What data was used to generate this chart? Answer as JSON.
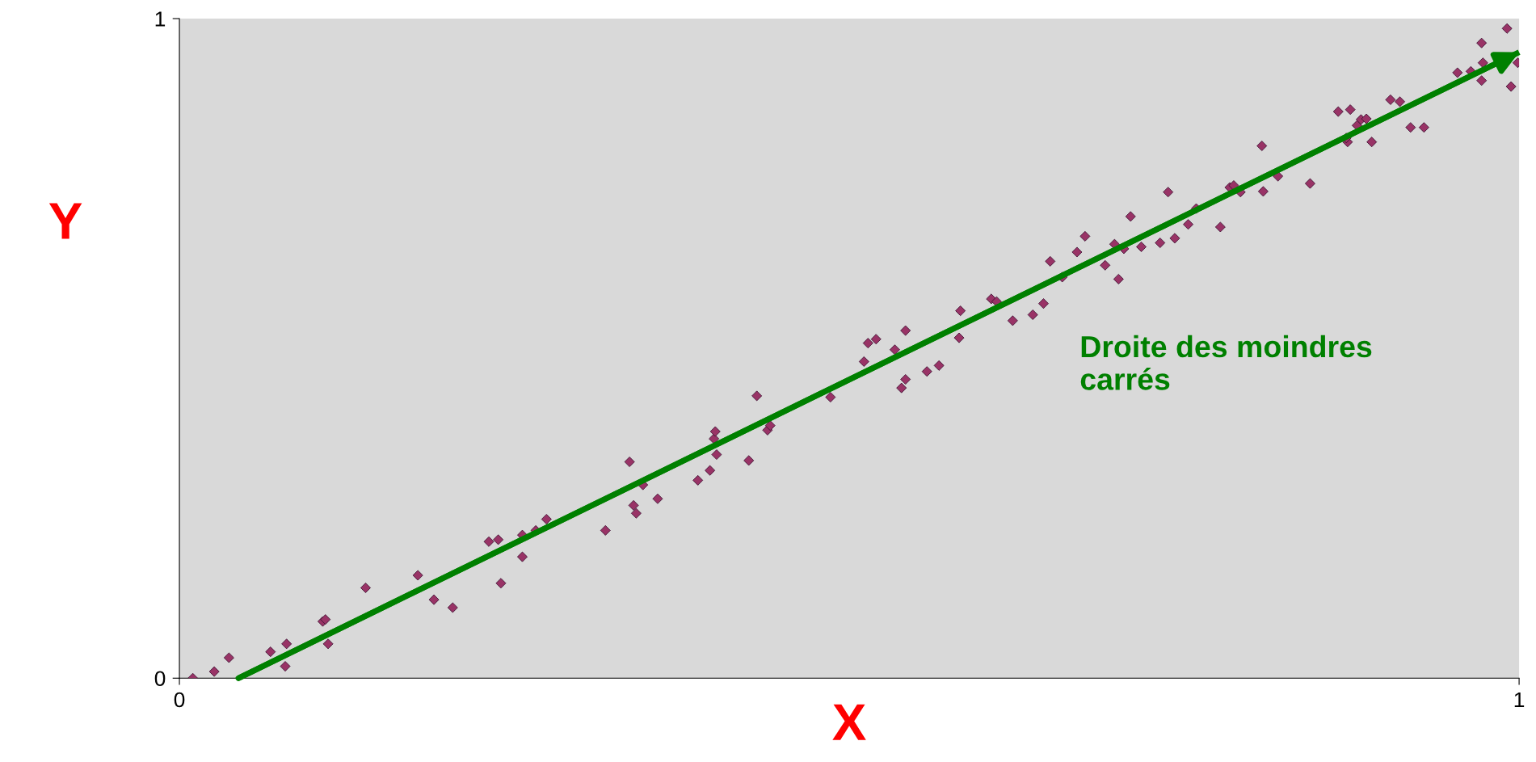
{
  "chart_data": {
    "type": "scatter",
    "xlabel": "X",
    "ylabel": "Y",
    "xlim": [
      0,
      1
    ],
    "ylim": [
      0,
      1
    ],
    "xticks": [
      0,
      1
    ],
    "yticks": [
      0,
      1
    ],
    "grid": false,
    "legend": false,
    "series": [
      {
        "marker": "diamond",
        "color": "#993366",
        "x": [
          0.01,
          0.026,
          0.037,
          0.068,
          0.08,
          0.079,
          0.107,
          0.109,
          0.111,
          0.139,
          0.178,
          0.19,
          0.204,
          0.231,
          0.238,
          0.24,
          0.256,
          0.256,
          0.266,
          0.274,
          0.318,
          0.336,
          0.339,
          0.341,
          0.346,
          0.357,
          0.387,
          0.396,
          0.399,
          0.4,
          0.401,
          0.425,
          0.431,
          0.439,
          0.441,
          0.486,
          0.511,
          0.514,
          0.52,
          0.534,
          0.539,
          0.542,
          0.542,
          0.558,
          0.567,
          0.582,
          0.583,
          0.606,
          0.61,
          0.622,
          0.637,
          0.645,
          0.65,
          0.659,
          0.67,
          0.676,
          0.691,
          0.698,
          0.701,
          0.705,
          0.71,
          0.718,
          0.732,
          0.738,
          0.743,
          0.753,
          0.759,
          0.777,
          0.784,
          0.787,
          0.792,
          0.808,
          0.809,
          0.82,
          0.844,
          0.865,
          0.872,
          0.874,
          0.871,
          0.879,
          0.882,
          0.886,
          0.89,
          0.904,
          0.911,
          0.919,
          0.929,
          0.954,
          0.964,
          0.972,
          0.973,
          0.972,
          0.991,
          0.994,
          0.999
        ],
        "values": [
          0.0,
          0.01,
          0.031,
          0.04,
          0.052,
          0.018,
          0.086,
          0.089,
          0.052,
          0.137,
          0.156,
          0.119,
          0.107,
          0.207,
          0.21,
          0.144,
          0.217,
          0.184,
          0.224,
          0.241,
          0.224,
          0.328,
          0.262,
          0.25,
          0.293,
          0.272,
          0.3,
          0.315,
          0.363,
          0.374,
          0.339,
          0.33,
          0.428,
          0.376,
          0.383,
          0.426,
          0.48,
          0.508,
          0.514,
          0.498,
          0.44,
          0.453,
          0.527,
          0.465,
          0.474,
          0.516,
          0.557,
          0.575,
          0.571,
          0.542,
          0.551,
          0.568,
          0.632,
          0.608,
          0.646,
          0.67,
          0.626,
          0.658,
          0.605,
          0.651,
          0.7,
          0.654,
          0.66,
          0.737,
          0.667,
          0.688,
          0.712,
          0.684,
          0.744,
          0.747,
          0.737,
          0.807,
          0.738,
          0.761,
          0.75,
          0.859,
          0.813,
          0.862,
          0.819,
          0.838,
          0.847,
          0.848,
          0.813,
          0.877,
          0.874,
          0.835,
          0.835,
          0.918,
          0.92,
          0.963,
          0.933,
          0.906,
          0.985,
          0.897,
          0.933
        ]
      },
      {
        "type": "line",
        "marker": "none",
        "name": "Droite des moindres carrés",
        "color": "#008000",
        "x": [
          0.044,
          1.0
        ],
        "values": [
          0.0,
          0.949
        ]
      }
    ]
  }
}
